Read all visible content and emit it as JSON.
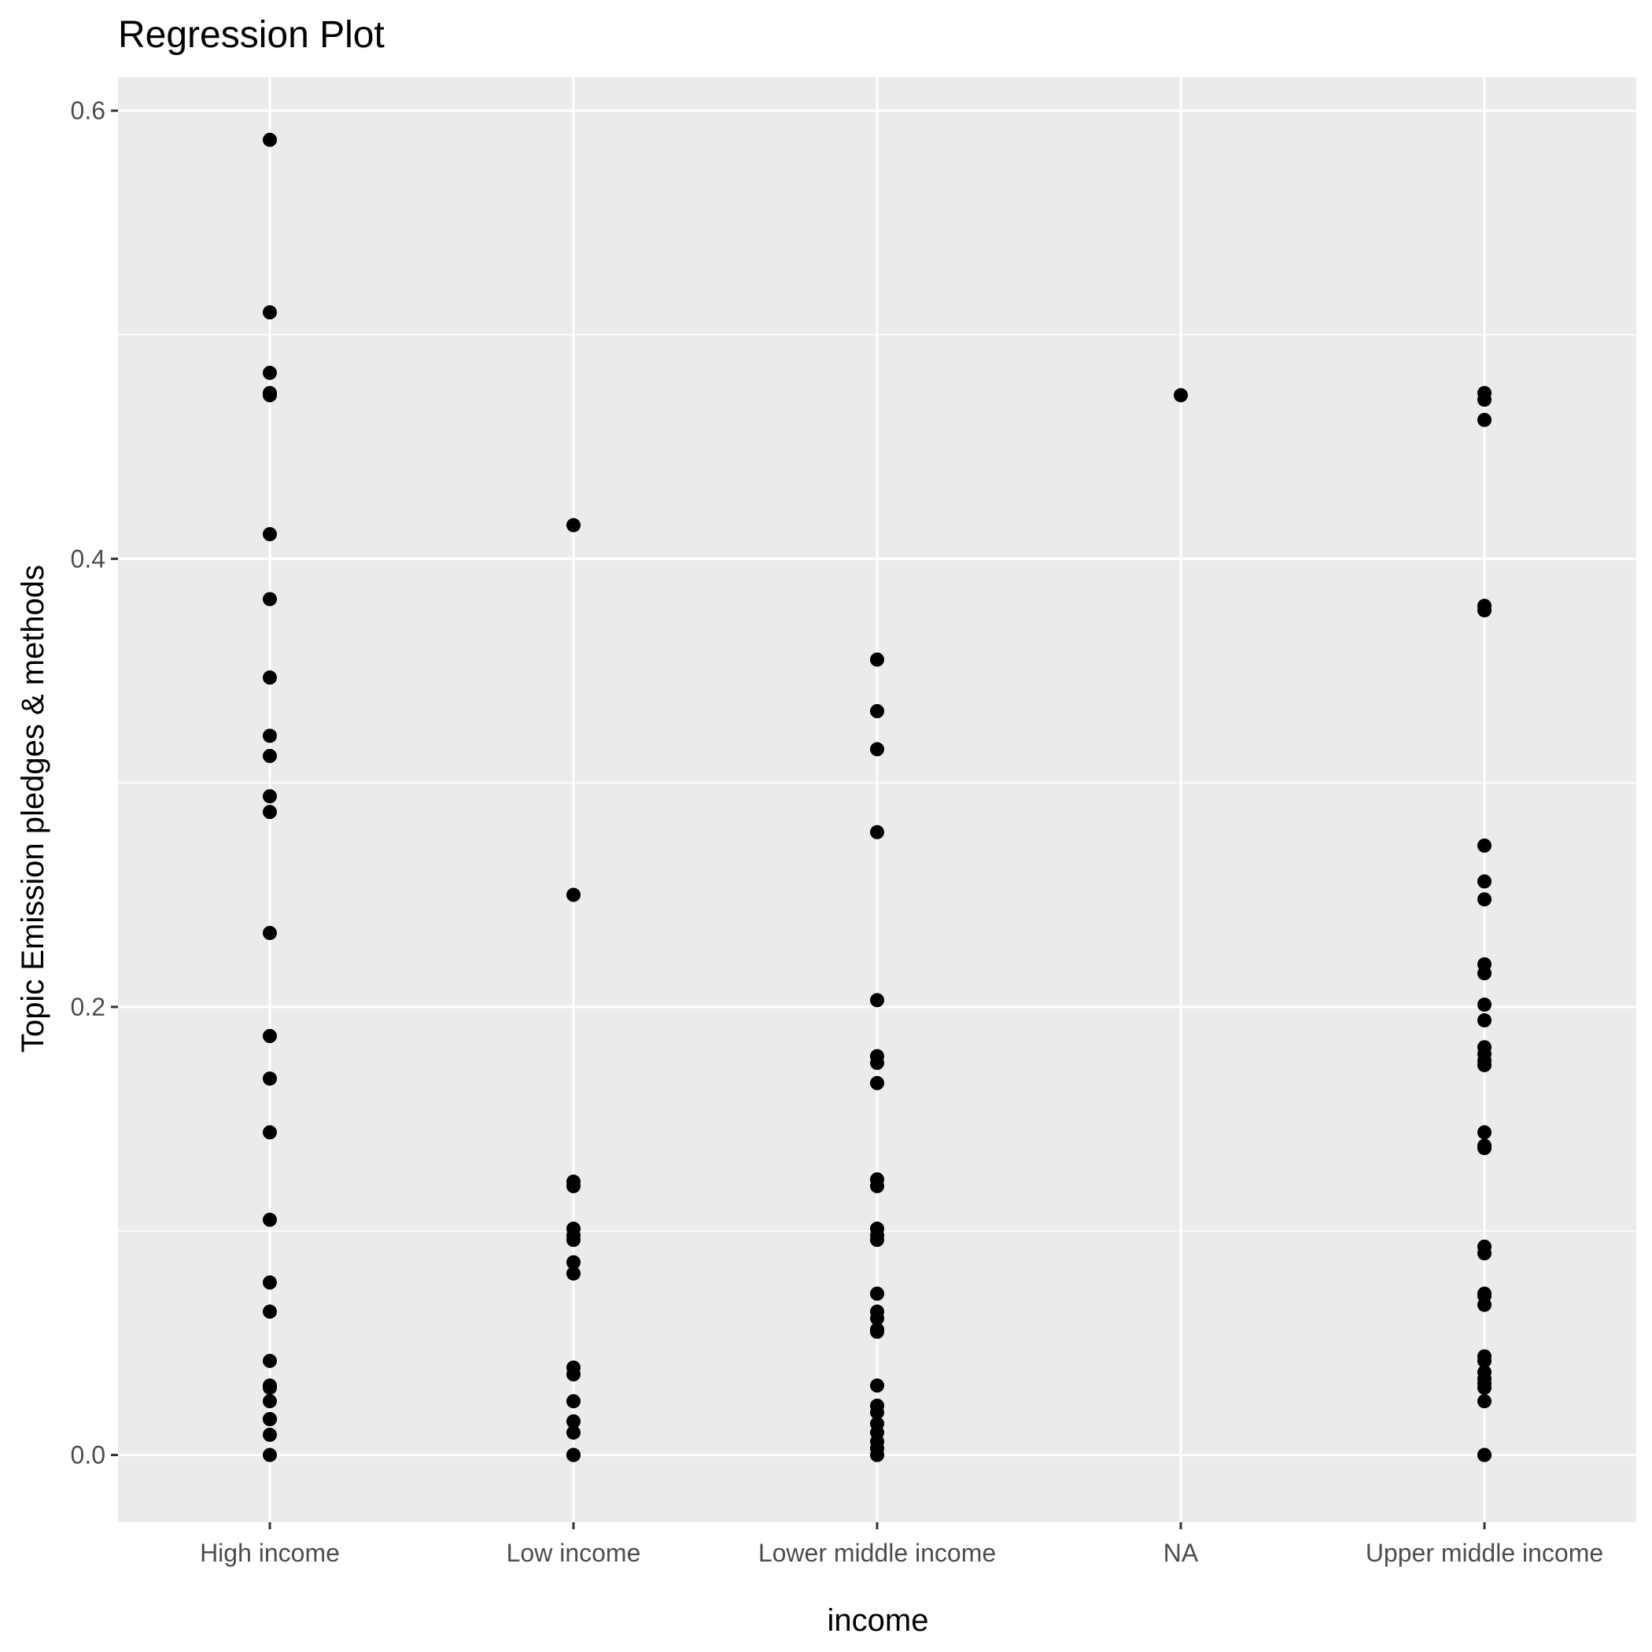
{
  "chart_data": {
    "type": "scatter",
    "title": "Regression Plot",
    "xlabel": "income",
    "ylabel": "Topic Emission pledges & methods",
    "ylim": [
      -0.03,
      0.615
    ],
    "y_ticks": [
      {
        "value": 0.0,
        "label": "0.0"
      },
      {
        "value": 0.2,
        "label": "0.2"
      },
      {
        "value": 0.4,
        "label": "0.4"
      },
      {
        "value": 0.6,
        "label": "0.6"
      }
    ],
    "y_minor_gridlines": [
      0.1,
      0.3,
      0.5
    ],
    "grid": true,
    "panel_color": "#ebebeb",
    "grid_color": "#ffffff",
    "point_color": "#000000",
    "categories": [
      "High income",
      "Low income",
      "Lower middle income",
      "NA",
      "Upper middle income"
    ],
    "series": [
      {
        "values": [
          {
            "x": "High income",
            "y": 0.587
          },
          {
            "x": "High income",
            "y": 0.51
          },
          {
            "x": "High income",
            "y": 0.483
          },
          {
            "x": "High income",
            "y": 0.474
          },
          {
            "x": "High income",
            "y": 0.473
          },
          {
            "x": "High income",
            "y": 0.411
          },
          {
            "x": "High income",
            "y": 0.382
          },
          {
            "x": "High income",
            "y": 0.347
          },
          {
            "x": "High income",
            "y": 0.321
          },
          {
            "x": "High income",
            "y": 0.312
          },
          {
            "x": "High income",
            "y": 0.294
          },
          {
            "x": "High income",
            "y": 0.287
          },
          {
            "x": "High income",
            "y": 0.233
          },
          {
            "x": "High income",
            "y": 0.187
          },
          {
            "x": "High income",
            "y": 0.168
          },
          {
            "x": "High income",
            "y": 0.144
          },
          {
            "x": "High income",
            "y": 0.105
          },
          {
            "x": "High income",
            "y": 0.077
          },
          {
            "x": "High income",
            "y": 0.064
          },
          {
            "x": "High income",
            "y": 0.042
          },
          {
            "x": "High income",
            "y": 0.031
          },
          {
            "x": "High income",
            "y": 0.03
          },
          {
            "x": "High income",
            "y": 0.024
          },
          {
            "x": "High income",
            "y": 0.016
          },
          {
            "x": "High income",
            "y": 0.016
          },
          {
            "x": "High income",
            "y": 0.009
          },
          {
            "x": "High income",
            "y": 0.0
          },
          {
            "x": "Low income",
            "y": 0.415
          },
          {
            "x": "Low income",
            "y": 0.25
          },
          {
            "x": "Low income",
            "y": 0.122
          },
          {
            "x": "Low income",
            "y": 0.12
          },
          {
            "x": "Low income",
            "y": 0.101
          },
          {
            "x": "Low income",
            "y": 0.098
          },
          {
            "x": "Low income",
            "y": 0.096
          },
          {
            "x": "Low income",
            "y": 0.086
          },
          {
            "x": "Low income",
            "y": 0.081
          },
          {
            "x": "Low income",
            "y": 0.039
          },
          {
            "x": "Low income",
            "y": 0.036
          },
          {
            "x": "Low income",
            "y": 0.024
          },
          {
            "x": "Low income",
            "y": 0.015
          },
          {
            "x": "Low income",
            "y": 0.01
          },
          {
            "x": "Low income",
            "y": 0.0
          },
          {
            "x": "Low income",
            "y": 0.0
          },
          {
            "x": "Lower middle income",
            "y": 0.355
          },
          {
            "x": "Lower middle income",
            "y": 0.332
          },
          {
            "x": "Lower middle income",
            "y": 0.315
          },
          {
            "x": "Lower middle income",
            "y": 0.278
          },
          {
            "x": "Lower middle income",
            "y": 0.203
          },
          {
            "x": "Lower middle income",
            "y": 0.178
          },
          {
            "x": "Lower middle income",
            "y": 0.175
          },
          {
            "x": "Lower middle income",
            "y": 0.166
          },
          {
            "x": "Lower middle income",
            "y": 0.123
          },
          {
            "x": "Lower middle income",
            "y": 0.12
          },
          {
            "x": "Lower middle income",
            "y": 0.101
          },
          {
            "x": "Lower middle income",
            "y": 0.098
          },
          {
            "x": "Lower middle income",
            "y": 0.096
          },
          {
            "x": "Lower middle income",
            "y": 0.072
          },
          {
            "x": "Lower middle income",
            "y": 0.064
          },
          {
            "x": "Lower middle income",
            "y": 0.061
          },
          {
            "x": "Lower middle income",
            "y": 0.056
          },
          {
            "x": "Lower middle income",
            "y": 0.055
          },
          {
            "x": "Lower middle income",
            "y": 0.031
          },
          {
            "x": "Lower middle income",
            "y": 0.022
          },
          {
            "x": "Lower middle income",
            "y": 0.019
          },
          {
            "x": "Lower middle income",
            "y": 0.014
          },
          {
            "x": "Lower middle income",
            "y": 0.01
          },
          {
            "x": "Lower middle income",
            "y": 0.006
          },
          {
            "x": "Lower middle income",
            "y": 0.003
          },
          {
            "x": "Lower middle income",
            "y": 0.0
          },
          {
            "x": "Lower middle income",
            "y": 0.0
          },
          {
            "x": "NA",
            "y": 0.473
          },
          {
            "x": "Upper middle income",
            "y": 0.474
          },
          {
            "x": "Upper middle income",
            "y": 0.471
          },
          {
            "x": "Upper middle income",
            "y": 0.462
          },
          {
            "x": "Upper middle income",
            "y": 0.379
          },
          {
            "x": "Upper middle income",
            "y": 0.377
          },
          {
            "x": "Upper middle income",
            "y": 0.272
          },
          {
            "x": "Upper middle income",
            "y": 0.256
          },
          {
            "x": "Upper middle income",
            "y": 0.248
          },
          {
            "x": "Upper middle income",
            "y": 0.219
          },
          {
            "x": "Upper middle income",
            "y": 0.215
          },
          {
            "x": "Upper middle income",
            "y": 0.201
          },
          {
            "x": "Upper middle income",
            "y": 0.194
          },
          {
            "x": "Upper middle income",
            "y": 0.182
          },
          {
            "x": "Upper middle income",
            "y": 0.179
          },
          {
            "x": "Upper middle income",
            "y": 0.176
          },
          {
            "x": "Upper middle income",
            "y": 0.174
          },
          {
            "x": "Upper middle income",
            "y": 0.144
          },
          {
            "x": "Upper middle income",
            "y": 0.138
          },
          {
            "x": "Upper middle income",
            "y": 0.137
          },
          {
            "x": "Upper middle income",
            "y": 0.093
          },
          {
            "x": "Upper middle income",
            "y": 0.09
          },
          {
            "x": "Upper middle income",
            "y": 0.072
          },
          {
            "x": "Upper middle income",
            "y": 0.071
          },
          {
            "x": "Upper middle income",
            "y": 0.067
          },
          {
            "x": "Upper middle income",
            "y": 0.044
          },
          {
            "x": "Upper middle income",
            "y": 0.042
          },
          {
            "x": "Upper middle income",
            "y": 0.037
          },
          {
            "x": "Upper middle income",
            "y": 0.034
          },
          {
            "x": "Upper middle income",
            "y": 0.032
          },
          {
            "x": "Upper middle income",
            "y": 0.03
          },
          {
            "x": "Upper middle income",
            "y": 0.024
          },
          {
            "x": "Upper middle income",
            "y": 0.0
          },
          {
            "x": "Upper middle income",
            "y": 0.0
          }
        ]
      }
    ]
  }
}
